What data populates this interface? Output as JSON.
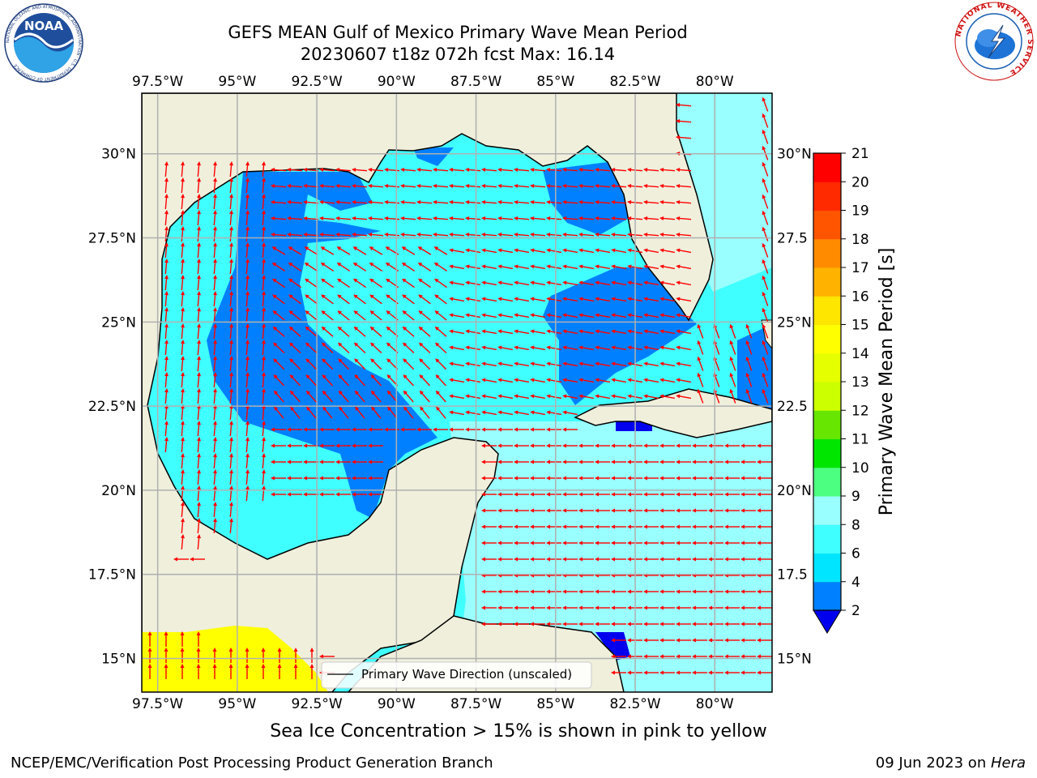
{
  "title": {
    "line1": "GEFS MEAN Gulf of Mexico Primary Wave Mean Period",
    "line2": "20230607 t18z 072h fcst   Max: 16.14"
  },
  "map": {
    "lon_ticks": [
      "97.5°W",
      "95°W",
      "92.5°W",
      "90°W",
      "87.5°W",
      "85°W",
      "82.5°W",
      "80°W"
    ],
    "lon_values": [
      -97.5,
      -95,
      -92.5,
      -90,
      -87.5,
      -85,
      -82.5,
      -80
    ],
    "lat_ticks_left": [
      "30°N",
      "27.5°N",
      "25°N",
      "22.5°N",
      "20°N",
      "17.5°N",
      "15°N"
    ],
    "lat_ticks_right": [
      "30°N",
      "27.5",
      "25°N",
      "22.5",
      "20°N",
      "17.5",
      "15°N"
    ],
    "lat_values": [
      30,
      27.5,
      25,
      22.5,
      20,
      17.5,
      15
    ],
    "legend_label": "Primary Wave Direction (unscaled)",
    "arrow_color": "#ff0000",
    "land_color": "#efefdc"
  },
  "colorbar": {
    "label": "Primary Wave Mean Period [s]",
    "ticks": [
      "2",
      "4",
      "6",
      "8",
      "9",
      "10",
      "11",
      "12",
      "13",
      "14",
      "15",
      "16",
      "17",
      "18",
      "19",
      "20",
      "21"
    ],
    "colors": [
      "#0080ff",
      "#00e5ff",
      "#40ffff",
      "#99ffff",
      "#4dff80",
      "#00e600",
      "#66e600",
      "#ccff00",
      "#e6ff00",
      "#ffff00",
      "#ffe600",
      "#ffb300",
      "#ff8c00",
      "#ff5500",
      "#ff2a00",
      "#ff0000"
    ],
    "under_color": "#0000ee"
  },
  "subcaption": "Sea Ice Concentration > 15% is shown in pink to yellow",
  "footer": {
    "left": "NCEP/EMC/Verification Post Processing Product Generation Branch",
    "right_date": "09 Jun 2023 on ",
    "right_host": "Hera"
  },
  "logos": {
    "noaa_text": "NOAA",
    "noaa_ring": "NATIONAL OCEANIC AND ATMOSPHERIC ADMINISTRATION · U.S. DEPARTMENT OF COMMERCE",
    "nws_ring": "NATIONAL WEATHER SERVICE"
  }
}
